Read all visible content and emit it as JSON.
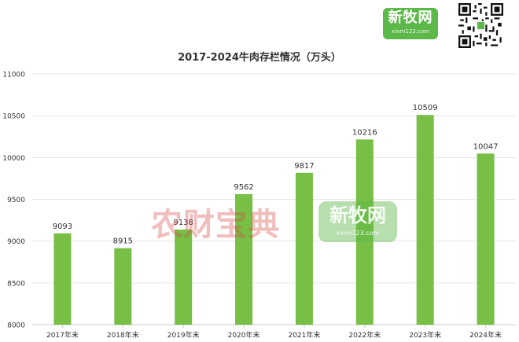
{
  "logo": {
    "cn": "新牧网",
    "en": "xinm123.com"
  },
  "watermark": {
    "text": "农财宝典",
    "logo_cn": "新牧网",
    "logo_en": "xinm123.com"
  },
  "colors": {
    "bar": "#77bf45",
    "grid": "#e6e6e6",
    "axis_text": "#333333",
    "title": "#333333"
  },
  "chart_data": {
    "type": "bar",
    "title": "2017-2024牛肉存栏情况（万头）",
    "categories": [
      "2017年末",
      "2018年末",
      "2019年末",
      "2020年末",
      "2021年末",
      "2022年末",
      "2023年末",
      "2024年末"
    ],
    "values": [
      9093,
      8915,
      9138,
      9562,
      9817,
      10216,
      10509,
      10047
    ],
    "ylim": [
      8000,
      11000
    ],
    "yticks": [
      8000,
      8500,
      9000,
      9500,
      10000,
      10500,
      11000
    ],
    "grid": true,
    "xlabel": "",
    "ylabel": ""
  }
}
